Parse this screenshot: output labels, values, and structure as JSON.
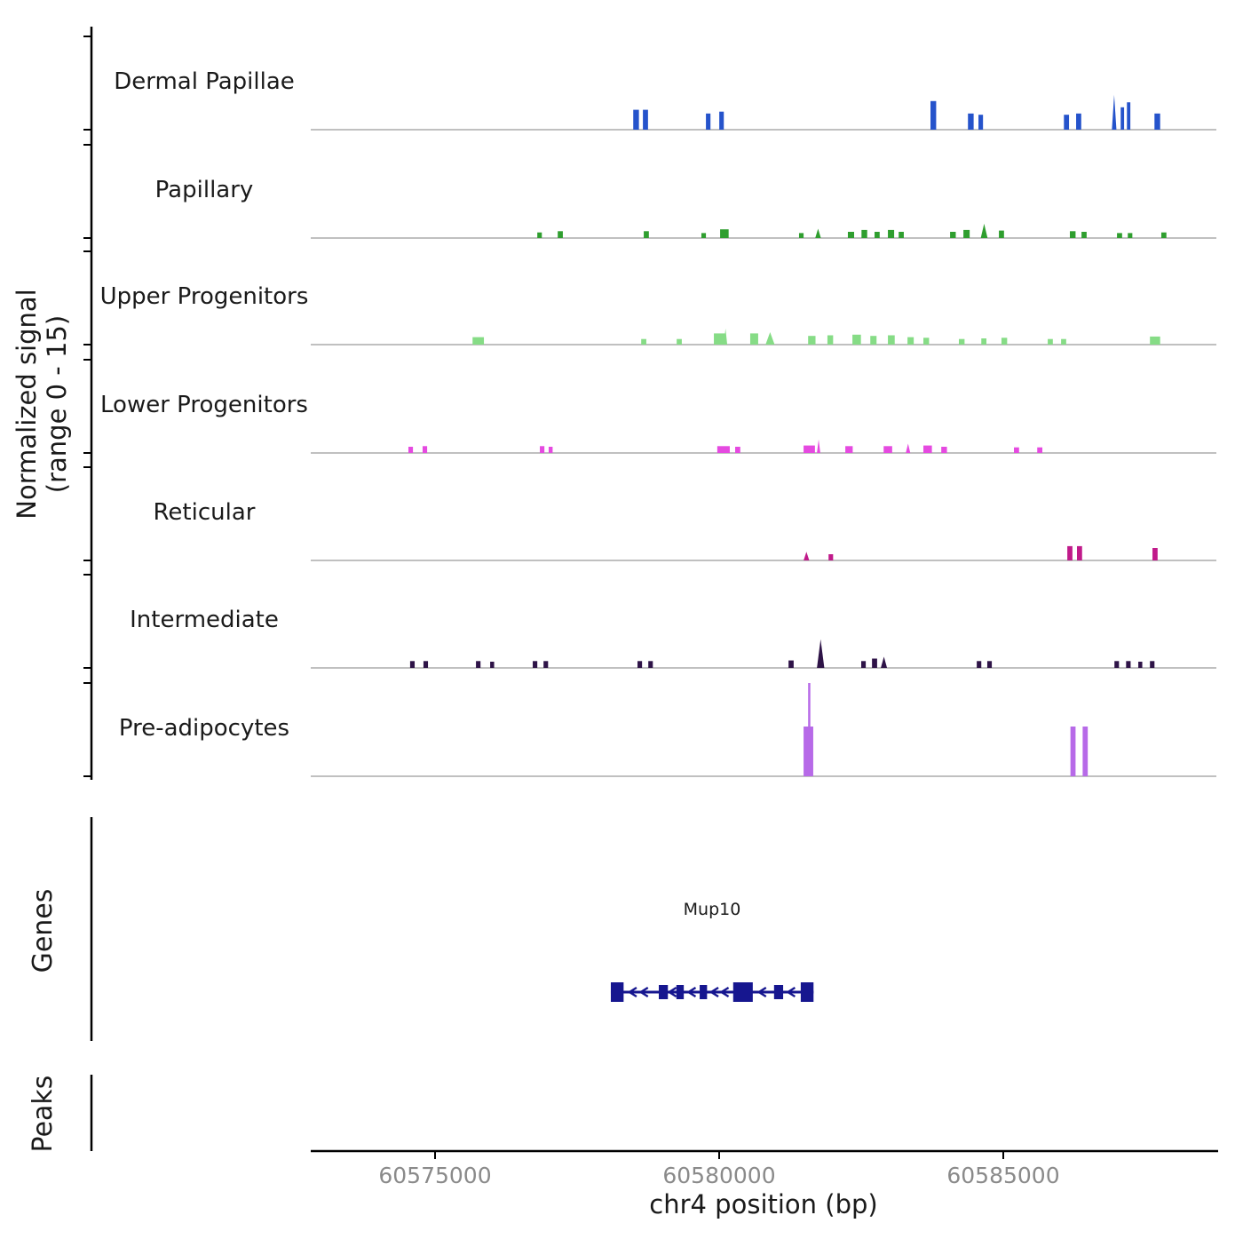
{
  "y_axis": {
    "label_line1": "Normalized signal",
    "label_line2": "(range 0 - 15)",
    "range_min": 0,
    "range_max": 15
  },
  "sections": {
    "genes_label": "Genes",
    "peaks_label": "Peaks"
  },
  "x_axis": {
    "label": "chr4 position (bp)",
    "ticks": [
      "60575000",
      "60580000",
      "60585000"
    ]
  },
  "chart_data": {
    "type": "area",
    "title": "",
    "ylabel": "Normalized signal (range 0 - 15)",
    "xlabel": "chr4 position (bp)",
    "ylim": [
      0,
      15
    ],
    "xlim": [
      60572800,
      60588750
    ],
    "x_tick_values": [
      60575000,
      60580000,
      60585000
    ],
    "tracks": [
      {
        "name": "Dermal Papillae",
        "color": "#2553cb",
        "peaks": [
          [
            60578480,
            100,
            3.2
          ],
          [
            60578650,
            90,
            3.2
          ],
          [
            60579760,
            80,
            2.6
          ],
          [
            60579995,
            80,
            2.9
          ],
          [
            60583715,
            100,
            4.6
          ],
          [
            60584375,
            100,
            2.6
          ],
          [
            60584560,
            80,
            2.4
          ],
          [
            60586065,
            90,
            2.4
          ],
          [
            60586280,
            90,
            2.6
          ],
          [
            60586910,
            80,
            5.6,
            "tri"
          ],
          [
            60587065,
            60,
            3.6
          ],
          [
            60587175,
            60,
            4.4
          ],
          [
            60587660,
            100,
            2.6
          ]
        ]
      },
      {
        "name": "Papillary",
        "color": "#2f9e2f",
        "peaks": [
          [
            60576790,
            80,
            0.9
          ],
          [
            60577150,
            90,
            1.1
          ],
          [
            60578665,
            90,
            1.1
          ],
          [
            60579680,
            80,
            0.8
          ],
          [
            60580010,
            150,
            1.4
          ],
          [
            60581400,
            80,
            0.8
          ],
          [
            60581685,
            100,
            1.5,
            "tri"
          ],
          [
            60582260,
            110,
            1.0
          ],
          [
            60582500,
            100,
            1.3
          ],
          [
            60582730,
            90,
            1.0
          ],
          [
            60582965,
            110,
            1.3
          ],
          [
            60583155,
            90,
            1.0
          ],
          [
            60584060,
            100,
            1.0
          ],
          [
            60584295,
            110,
            1.3
          ],
          [
            60584600,
            120,
            2.3,
            "tri"
          ],
          [
            60584920,
            90,
            1.2
          ],
          [
            60586170,
            100,
            1.1
          ],
          [
            60586375,
            90,
            1.0
          ],
          [
            60587000,
            90,
            0.8
          ],
          [
            60587190,
            80,
            0.8
          ],
          [
            60587780,
            90,
            0.9
          ]
        ]
      },
      {
        "name": "Upper Progenitors",
        "color": "#86dc86",
        "peaks": [
          [
            60575650,
            200,
            1.2
          ],
          [
            60578620,
            90,
            0.9
          ],
          [
            60579245,
            90,
            0.9
          ],
          [
            60579900,
            200,
            1.8
          ],
          [
            60580075,
            60,
            2.6,
            "tri"
          ],
          [
            60580540,
            140,
            1.8
          ],
          [
            60580810,
            160,
            2.0,
            "tri"
          ],
          [
            60581560,
            130,
            1.4
          ],
          [
            60581900,
            100,
            1.5
          ],
          [
            60582340,
            150,
            1.6
          ],
          [
            60582655,
            110,
            1.4
          ],
          [
            60582965,
            120,
            1.5
          ],
          [
            60583310,
            110,
            1.2
          ],
          [
            60583590,
            100,
            1.1
          ],
          [
            60584215,
            100,
            0.9
          ],
          [
            60584610,
            90,
            1.0
          ],
          [
            60584965,
            100,
            1.1
          ],
          [
            60585780,
            90,
            0.9
          ],
          [
            60586015,
            90,
            0.9
          ],
          [
            60587580,
            180,
            1.3
          ]
        ]
      },
      {
        "name": "Lower Progenitors",
        "color": "#e54ae0",
        "peaks": [
          [
            60574520,
            80,
            1.0
          ],
          [
            60574770,
            80,
            1.1
          ],
          [
            60576835,
            80,
            1.1
          ],
          [
            60576990,
            70,
            1.0
          ],
          [
            60579960,
            220,
            1.1
          ],
          [
            60580275,
            90,
            1.0
          ],
          [
            60581480,
            200,
            1.2
          ],
          [
            60581715,
            60,
            2.2,
            "tri"
          ],
          [
            60582215,
            130,
            1.1
          ],
          [
            60582890,
            150,
            1.1
          ],
          [
            60583280,
            80,
            1.5,
            "tri"
          ],
          [
            60583590,
            150,
            1.2
          ],
          [
            60583905,
            100,
            1.0
          ],
          [
            60585185,
            90,
            0.9
          ],
          [
            60585595,
            90,
            0.9
          ]
        ]
      },
      {
        "name": "Reticular",
        "color": "#c01a8a",
        "peaks": [
          [
            60581480,
            100,
            1.4,
            "tri"
          ],
          [
            60581920,
            80,
            1.0
          ],
          [
            60586125,
            90,
            2.3
          ],
          [
            60586295,
            90,
            2.3
          ],
          [
            60587625,
            90,
            2.0
          ]
        ]
      },
      {
        "name": "Intermediate",
        "color": "#2e1347",
        "peaks": [
          [
            60574550,
            80,
            1.1
          ],
          [
            60574785,
            80,
            1.1
          ],
          [
            60575710,
            80,
            1.1
          ],
          [
            60575960,
            70,
            1.0
          ],
          [
            60576710,
            80,
            1.1
          ],
          [
            60576900,
            80,
            1.1
          ],
          [
            60578555,
            80,
            1.1
          ],
          [
            60578745,
            80,
            1.1
          ],
          [
            60581215,
            90,
            1.2
          ],
          [
            60581715,
            130,
            4.6,
            "tri"
          ],
          [
            60582495,
            80,
            1.1
          ],
          [
            60582685,
            90,
            1.5
          ],
          [
            60582840,
            110,
            1.8,
            "tri"
          ],
          [
            60584530,
            80,
            1.1
          ],
          [
            60584715,
            80,
            1.1
          ],
          [
            60586955,
            80,
            1.1
          ],
          [
            60587160,
            80,
            1.1
          ],
          [
            60587375,
            70,
            1.0
          ],
          [
            60587580,
            80,
            1.1
          ]
        ]
      },
      {
        "name": "Pre-adipocytes",
        "color": "#b76ae8",
        "peaks": [
          [
            60581480,
            170,
            8.0
          ],
          [
            60581560,
            35,
            15.0
          ],
          [
            60586180,
            90,
            8.0
          ],
          [
            60586395,
            90,
            8.0
          ]
        ]
      }
    ],
    "genes": [
      {
        "name": "Mup10",
        "start": 60578085,
        "end": 60581655,
        "strand": "-",
        "color": "#16168f",
        "exons": [
          [
            60578085,
            225,
            22
          ],
          [
            60578930,
            160,
            16
          ],
          [
            60579240,
            130,
            16
          ],
          [
            60579650,
            130,
            16
          ],
          [
            60580240,
            345,
            22
          ],
          [
            60580960,
            160,
            16
          ],
          [
            60581430,
            225,
            22
          ]
        ],
        "arrows": [
          60578460,
          60578660,
          60579160,
          60579500,
          60579900,
          60580080,
          60580740,
          60581250
        ]
      }
    ],
    "peaks_track": []
  }
}
